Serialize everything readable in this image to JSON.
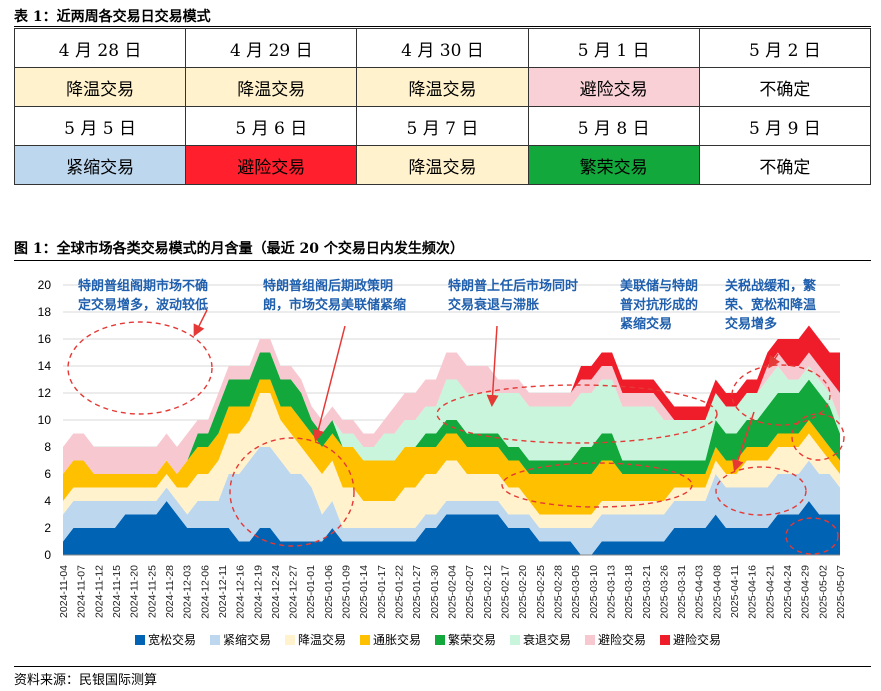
{
  "table": {
    "title": "表 1：近两周各交易日交易模式",
    "rows": [
      [
        {
          "text": "4 月 28 日",
          "color": "#ffffff"
        },
        {
          "text": "4 月 29 日",
          "color": "#ffffff"
        },
        {
          "text": "4 月 30 日",
          "color": "#ffffff"
        },
        {
          "text": "5 月 1 日",
          "color": "#ffffff"
        },
        {
          "text": "5 月 2 日",
          "color": "#ffffff"
        }
      ],
      [
        {
          "text": "降温交易",
          "color": "#fff2cc"
        },
        {
          "text": "降温交易",
          "color": "#fff2cc"
        },
        {
          "text": "降温交易",
          "color": "#fff2cc"
        },
        {
          "text": "避险交易",
          "color": "#f8d0d6"
        },
        {
          "text": "不确定",
          "color": "#ffffff"
        }
      ],
      [
        {
          "text": "5 月 5 日",
          "color": "#ffffff"
        },
        {
          "text": "5 月 6 日",
          "color": "#ffffff"
        },
        {
          "text": "5 月 7 日",
          "color": "#ffffff"
        },
        {
          "text": "5 月 8 日",
          "color": "#ffffff"
        },
        {
          "text": "5 月 9 日",
          "color": "#ffffff"
        }
      ],
      [
        {
          "text": "紧缩交易",
          "color": "#bdd7ee"
        },
        {
          "text": "避险交易",
          "color": "#ff1f2d"
        },
        {
          "text": "降温交易",
          "color": "#fff2cc"
        },
        {
          "text": "繁荣交易",
          "color": "#12a83c"
        },
        {
          "text": "不确定",
          "color": "#ffffff"
        }
      ]
    ]
  },
  "figure": {
    "title": "图 1：全球市场各类交易模式的月含量（最近 20 个交易日内发生频次）",
    "source": "资料来源：民银国际测算",
    "annotations": [
      {
        "lines": [
          "特朗普组阁期市场不确",
          "定交易增多，波动较低"
        ]
      },
      {
        "lines": [
          "特朗普组阁后期政策明",
          "朗，市场交易美联储紧缩"
        ]
      },
      {
        "lines": [
          "特朗普上任后市场同时",
          "交易衰退与滞胀"
        ]
      },
      {
        "lines": [
          "美联储与特朗",
          "普对抗形成的",
          "紧缩交易"
        ]
      },
      {
        "lines": [
          "关税战缓和，繁",
          "荣、宽松和降温",
          "交易增多"
        ]
      }
    ]
  },
  "chart_data": {
    "type": "area",
    "stacked": true,
    "ylim": [
      0,
      20
    ],
    "yticks": [
      0,
      2,
      4,
      6,
      8,
      10,
      12,
      14,
      16,
      18,
      20
    ],
    "x_tick_labels": [
      "2024-11-04",
      "2024-11-07",
      "2024-11-12",
      "2024-11-15",
      "2024-11-20",
      "2024-11-25",
      "2024-11-28",
      "2024-12-03",
      "2024-12-06",
      "2024-12-11",
      "2024-12-16",
      "2024-12-19",
      "2024-12-24",
      "2024-12-27",
      "2025-01-01",
      "2025-01-06",
      "2025-01-09",
      "2025-01-14",
      "2025-01-17",
      "2025-01-22",
      "2025-01-27",
      "2025-01-30",
      "2025-02-04",
      "2025-02-07",
      "2025-02-12",
      "2025-02-17",
      "2025-02-20",
      "2025-02-25",
      "2025-02-28",
      "2025-03-05",
      "2025-03-10",
      "2025-03-13",
      "2025-03-18",
      "2025-03-21",
      "2025-03-26",
      "2025-03-31",
      "2025-04-03",
      "2025-04-08",
      "2025-04-11",
      "2025-04-16",
      "2025-04-21",
      "2025-04-24",
      "2025-04-29",
      "2025-05-02",
      "2025-05-07"
    ],
    "legend_position": "bottom",
    "series": [
      {
        "name": "宽松交易",
        "color": "#0063b4",
        "values": [
          1,
          2,
          2,
          2,
          2,
          2,
          3,
          3,
          3,
          3,
          4,
          3,
          2,
          2,
          2,
          2,
          2,
          1,
          1,
          2,
          2,
          1,
          1,
          1,
          1,
          1,
          2,
          1,
          1,
          1,
          1,
          1,
          1,
          1,
          1,
          2,
          2,
          3,
          3,
          3,
          3,
          3,
          3,
          2,
          2,
          2,
          1,
          1,
          1,
          1,
          0,
          0,
          1,
          1,
          1,
          1,
          1,
          1,
          1,
          2,
          2,
          2,
          2,
          3,
          2,
          2,
          2,
          2,
          2,
          3,
          3,
          3,
          4,
          3,
          3,
          3
        ]
      },
      {
        "name": "紧缩交易",
        "color": "#bdd7ee",
        "values": [
          2,
          2,
          2,
          2,
          2,
          2,
          1,
          1,
          1,
          1,
          1,
          1,
          1,
          2,
          2,
          2,
          4,
          5,
          6,
          6,
          6,
          6,
          5,
          5,
          4,
          2,
          2,
          1,
          1,
          1,
          1,
          1,
          1,
          1,
          1,
          1,
          1,
          1,
          1,
          1,
          1,
          1,
          1,
          1,
          1,
          1,
          1,
          1,
          1,
          1,
          2,
          2,
          2,
          2,
          2,
          2,
          2,
          2,
          2,
          2,
          2,
          2,
          2,
          3,
          3,
          3,
          3,
          3,
          3,
          3,
          3,
          3,
          3,
          3,
          3,
          2
        ]
      },
      {
        "name": "降温交易",
        "color": "#fff2cc",
        "values": [
          1,
          1,
          1,
          1,
          1,
          1,
          1,
          1,
          1,
          1,
          1,
          1,
          2,
          2,
          2,
          3,
          3,
          3,
          3,
          4,
          4,
          3,
          3,
          2,
          2,
          3,
          3,
          3,
          3,
          2,
          2,
          2,
          2,
          3,
          3,
          3,
          3,
          3,
          3,
          2,
          2,
          2,
          2,
          2,
          2,
          1,
          1,
          1,
          1,
          1,
          1,
          1,
          1,
          1,
          1,
          1,
          1,
          1,
          1,
          1,
          1,
          1,
          1,
          1,
          1,
          1,
          2,
          2,
          2,
          2,
          2,
          2,
          2,
          2,
          1,
          1
        ]
      },
      {
        "name": "通胀交易",
        "color": "#ffc000",
        "values": [
          2,
          2,
          2,
          1,
          1,
          1,
          1,
          1,
          1,
          1,
          1,
          1,
          2,
          2,
          2,
          2,
          2,
          2,
          1,
          1,
          1,
          1,
          2,
          2,
          2,
          2,
          2,
          3,
          3,
          3,
          3,
          3,
          3,
          3,
          3,
          2,
          2,
          2,
          2,
          2,
          2,
          2,
          2,
          2,
          2,
          2,
          3,
          3,
          3,
          3,
          3,
          3,
          3,
          3,
          2,
          2,
          2,
          2,
          2,
          1,
          1,
          1,
          1,
          1,
          1,
          1,
          1,
          1,
          1,
          1,
          1,
          1,
          1,
          1,
          1,
          1
        ]
      },
      {
        "name": "繁荣交易",
        "color": "#12a83c",
        "values": [
          0,
          0,
          0,
          0,
          0,
          0,
          0,
          0,
          0,
          0,
          0,
          0,
          0,
          1,
          1,
          2,
          2,
          2,
          2,
          2,
          2,
          2,
          2,
          2,
          1,
          1,
          1,
          0,
          0,
          0,
          0,
          0,
          0,
          0,
          0,
          1,
          1,
          1,
          1,
          1,
          1,
          1,
          1,
          1,
          1,
          1,
          1,
          1,
          1,
          1,
          2,
          2,
          2,
          2,
          1,
          1,
          1,
          1,
          1,
          1,
          1,
          1,
          1,
          2,
          2,
          2,
          2,
          2,
          3,
          3,
          3,
          3,
          3,
          3,
          3,
          2
        ]
      },
      {
        "name": "衰退交易",
        "color": "#c8f5dc",
        "values": [
          0,
          0,
          0,
          0,
          0,
          0,
          0,
          0,
          0,
          0,
          0,
          0,
          0,
          0,
          0,
          0,
          0,
          0,
          0,
          0,
          0,
          0,
          0,
          0,
          0,
          0,
          0,
          1,
          1,
          1,
          1,
          2,
          2,
          2,
          2,
          2,
          2,
          3,
          3,
          3,
          3,
          3,
          3,
          4,
          4,
          4,
          4,
          4,
          4,
          4,
          4,
          4,
          4,
          4,
          4,
          4,
          4,
          4,
          3,
          3,
          3,
          3,
          3,
          2,
          2,
          2,
          2,
          2,
          2,
          2,
          1,
          1,
          1,
          1,
          1,
          1
        ]
      },
      {
        "name": "避险交易",
        "color": "#f8c8d0",
        "values": [
          2,
          2,
          2,
          2,
          2,
          2,
          2,
          2,
          2,
          2,
          2,
          2,
          2,
          1,
          1,
          1,
          1,
          1,
          1,
          1,
          1,
          1,
          1,
          1,
          1,
          1,
          1,
          1,
          1,
          1,
          1,
          1,
          2,
          2,
          2,
          2,
          2,
          2,
          2,
          2,
          2,
          2,
          1,
          1,
          1,
          1,
          1,
          1,
          1,
          1,
          1,
          1,
          1,
          1,
          1,
          1,
          1,
          1,
          1,
          0,
          0,
          0,
          0,
          0,
          0,
          0,
          0,
          0,
          1,
          1,
          1,
          1,
          1,
          1,
          1,
          2
        ]
      },
      {
        "name": "避险交易",
        "color": "#ef1c2a",
        "values": [
          0,
          0,
          0,
          0,
          0,
          0,
          0,
          0,
          0,
          0,
          0,
          0,
          0,
          0,
          0,
          0,
          0,
          0,
          0,
          0,
          0,
          0,
          0,
          0,
          0,
          0,
          0,
          0,
          0,
          0,
          0,
          0,
          0,
          0,
          0,
          0,
          0,
          0,
          0,
          0,
          0,
          0,
          0,
          0,
          0,
          0,
          0,
          0,
          0,
          0,
          1,
          1,
          1,
          1,
          1,
          1,
          1,
          1,
          1,
          1,
          1,
          1,
          1,
          1,
          1,
          1,
          1,
          1,
          1,
          1,
          2,
          2,
          2,
          2,
          2,
          3
        ]
      }
    ]
  }
}
